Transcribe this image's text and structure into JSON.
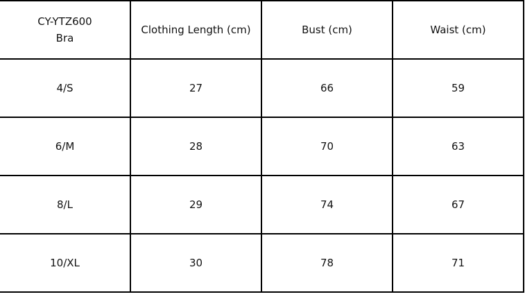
{
  "table": {
    "header": {
      "model": "CY-YTZ600",
      "product": "Bra",
      "columns": [
        "Clothing Length (cm)",
        "Bust (cm)",
        "Waist (cm)"
      ]
    },
    "rows": [
      {
        "size": "4/S",
        "values": [
          "27",
          "66",
          "59"
        ]
      },
      {
        "size": "6/M",
        "values": [
          "28",
          "70",
          "63"
        ]
      },
      {
        "size": "8/L",
        "values": [
          "29",
          "74",
          "67"
        ]
      },
      {
        "size": "10/XL",
        "values": [
          "30",
          "78",
          "71"
        ]
      }
    ]
  }
}
